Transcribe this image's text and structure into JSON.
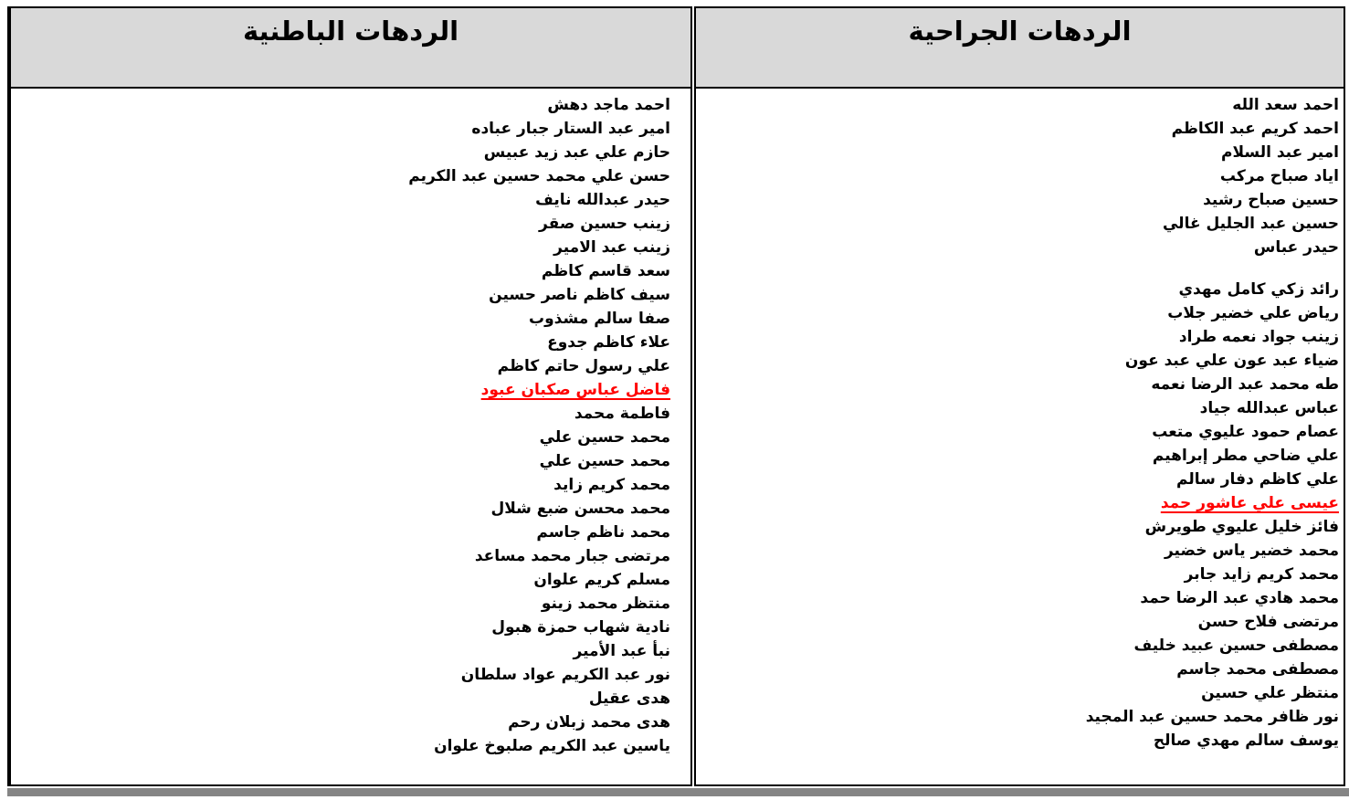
{
  "document": {
    "colors": {
      "header_bg": "#d9d9d9",
      "border": "#000000",
      "highlight_red": "#ff0000",
      "bottom_bar_gray": "#858585"
    },
    "columns": {
      "surgical": {
        "title": "الردهات الجراحية",
        "names": [
          {
            "text": "احمد سعد الله"
          },
          {
            "text": "احمد كريم عبد الكاظم"
          },
          {
            "text": "امير عبد السلام"
          },
          {
            "text": "اياد صباح مركب"
          },
          {
            "text": "حسين صباح رشيد"
          },
          {
            "text": "حسين عبد الجليل غالي"
          },
          {
            "text": "حيدر عباس"
          },
          {
            "spacer": true
          },
          {
            "text": "رائد زكي كامل مهدي"
          },
          {
            "text": "رياض علي خضير جلاب"
          },
          {
            "text": "زينب جواد نعمه طراد"
          },
          {
            "text": "ضياء عبد عون علي عبد عون"
          },
          {
            "text": "طه محمد عبد الرضا نعمه"
          },
          {
            "text": "عباس عبدالله جياد"
          },
          {
            "text": "عصام حمود عليوي متعب"
          },
          {
            "text": "علي ضاحي مطر إبراهيم"
          },
          {
            "text": "علي كاظم دفار سالم"
          },
          {
            "text": "عيسى علي عاشور حمد",
            "highlight": true
          },
          {
            "text": "فائز خليل عليوي طويرش"
          },
          {
            "text": "محمد خضير ياس خضير"
          },
          {
            "text": "محمد كريم زايد جابر"
          },
          {
            "text": "محمد هادي عبد الرضا حمد"
          },
          {
            "text": "مرتضى فلاح حسن"
          },
          {
            "text": "مصطفى حسين عبيد خليف"
          },
          {
            "text": "مصطفى محمد جاسم"
          },
          {
            "text": "منتظر علي حسين"
          },
          {
            "text": "نور ظافر محمد حسين عبد المجيد"
          },
          {
            "text": "يوسف سالم مهدي صالح"
          }
        ]
      },
      "internal": {
        "title": "الردهات الباطنية",
        "names": [
          {
            "text": "احمد ماجد دهش"
          },
          {
            "text": "امير عبد الستار جبار عباده"
          },
          {
            "text": "حازم علي عبد زيد عبيس"
          },
          {
            "text": "حسن علي محمد حسين عبد الكريم"
          },
          {
            "text": "حيدر عبدالله نايف"
          },
          {
            "text": "زينب حسين صقر"
          },
          {
            "text": "زينب عبد الامير"
          },
          {
            "text": "سعد قاسم كاظم"
          },
          {
            "text": "سيف كاظم ناصر حسين"
          },
          {
            "text": "صفا سالم مشذوب"
          },
          {
            "text": "علاء كاظم جدوع"
          },
          {
            "text": "علي رسول حاتم كاظم"
          },
          {
            "text": "فاضل عباس صكبان عبود",
            "highlight": true
          },
          {
            "text": "فاطمة محمد"
          },
          {
            "text": "محمد حسين علي"
          },
          {
            "text": "محمد حسين علي"
          },
          {
            "text": "محمد كريم زايد"
          },
          {
            "text": "محمد محسن ضبع شلال"
          },
          {
            "text": "محمد ناظم جاسم"
          },
          {
            "text": "مرتضى جبار محمد مساعد"
          },
          {
            "text": "مسلم كريم علوان"
          },
          {
            "text": "منتظر محمد زينو"
          },
          {
            "text": "نادية شهاب حمزة هبول"
          },
          {
            "text": "نبأ عبد الأمير"
          },
          {
            "text": "نور عبد الكريم عواد سلطان"
          },
          {
            "text": "هدى عقيل"
          },
          {
            "text": "هدى محمد زبلان رحم"
          },
          {
            "text": "ياسين عبد الكريم صلبوخ علوان"
          }
        ]
      }
    }
  }
}
